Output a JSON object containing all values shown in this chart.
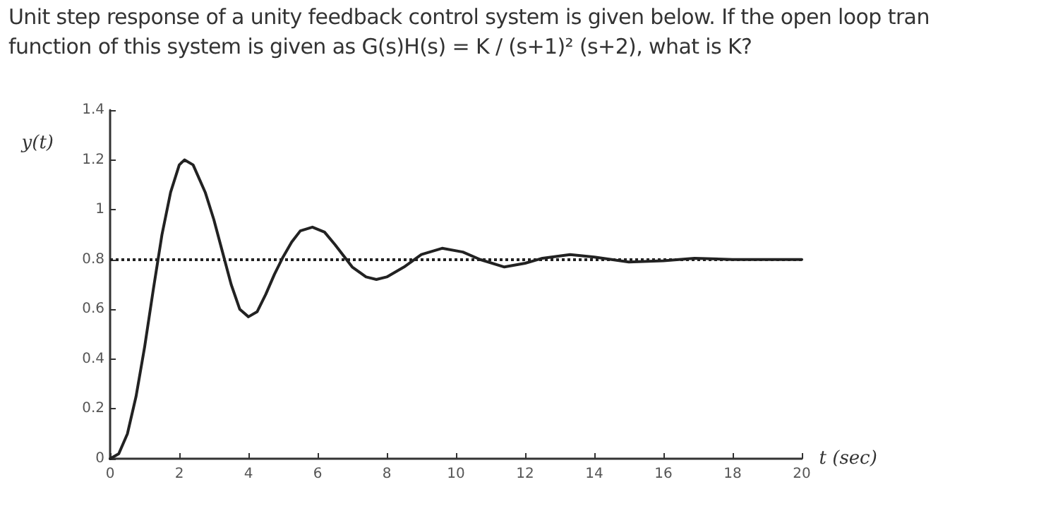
{
  "chart_data": {
    "type": "line",
    "title": "Unit step response of a unity feedback control system is given below. If the open loop tran\nfunction of this system is given as G(s)H(s) = K / (s+1)² (s+2), what is K?",
    "xlabel": "t (sec)",
    "ylabel": "y(t)",
    "x": [
      0,
      0.25,
      0.5,
      0.75,
      1,
      1.25,
      1.5,
      1.75,
      2,
      2.15,
      2.4,
      2.75,
      3,
      3.25,
      3.5,
      3.75,
      4,
      4.25,
      4.5,
      4.75,
      5,
      5.25,
      5.5,
      5.85,
      6.2,
      6.5,
      7,
      7.4,
      7.7,
      8,
      8.5,
      9,
      9.6,
      10.2,
      10.7,
      11.4,
      12,
      12.5,
      13.3,
      14,
      15,
      16,
      16.9,
      18,
      19,
      20
    ],
    "series": [
      {
        "color": "#222222",
        "values": [
          0,
          0.02,
          0.1,
          0.25,
          0.45,
          0.68,
          0.9,
          1.07,
          1.18,
          1.2,
          1.18,
          1.07,
          0.96,
          0.83,
          0.7,
          0.6,
          0.57,
          0.59,
          0.66,
          0.74,
          0.81,
          0.87,
          0.915,
          0.93,
          0.91,
          0.86,
          0.77,
          0.73,
          0.72,
          0.73,
          0.77,
          0.82,
          0.845,
          0.83,
          0.8,
          0.77,
          0.785,
          0.805,
          0.82,
          0.81,
          0.79,
          0.795,
          0.805,
          0.8,
          0.8,
          0.8
        ]
      }
    ],
    "xlim": [
      0,
      20
    ],
    "xticks": [
      0,
      2,
      4,
      6,
      8,
      10,
      12,
      14,
      16,
      18,
      20
    ],
    "ylim": [
      0,
      1.4
    ],
    "yticks": [
      0,
      0.2,
      0.4,
      0.6,
      0.8,
      1,
      1.2,
      1.4
    ],
    "ref_lines": [
      {
        "axis": "y",
        "value": 0.8,
        "color": "#222222",
        "line_style": "dotted"
      }
    ],
    "grid": false,
    "marker": "none",
    "line_style": "solid"
  }
}
